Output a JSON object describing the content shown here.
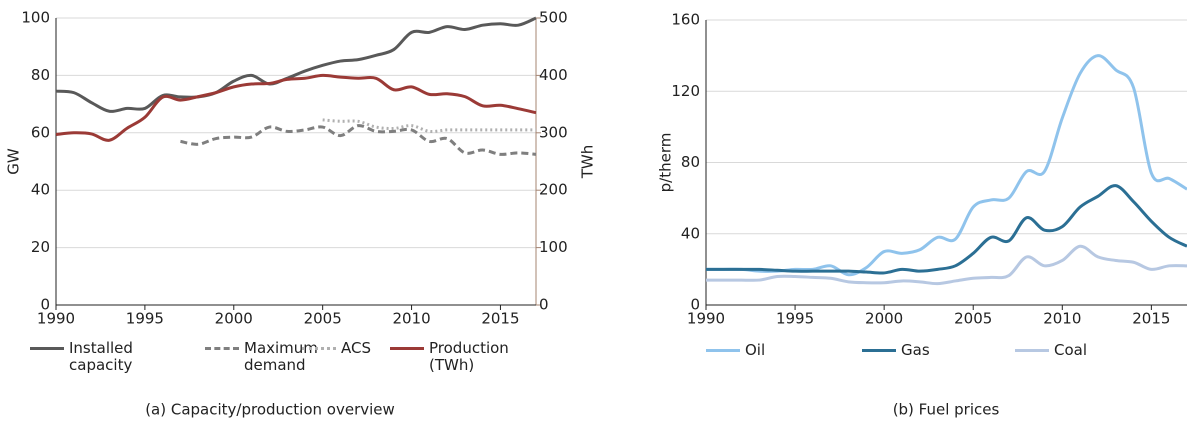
{
  "chart_data": [
    {
      "type": "line",
      "caption": "(a) Capacity/production overview",
      "ylabel": "GW",
      "y2label": "TWh",
      "y2_color": "#a48472",
      "x": [
        1990,
        1991,
        1992,
        1993,
        1994,
        1995,
        1996,
        1997,
        1998,
        1999,
        2000,
        2001,
        2002,
        2003,
        2004,
        2005,
        2006,
        2007,
        2008,
        2009,
        2010,
        2011,
        2012,
        2013,
        2014,
        2015,
        2016,
        2017
      ],
      "xlim": [
        1990,
        2017
      ],
      "xticks": [
        1990,
        1995,
        2000,
        2005,
        2010,
        2015
      ],
      "ylim": [
        0,
        100
      ],
      "yticks": [
        0,
        20,
        40,
        60,
        80,
        100
      ],
      "y2lim": [
        0,
        500
      ],
      "y2ticks": [
        0,
        100,
        200,
        300,
        400,
        500
      ],
      "grid": true,
      "series": [
        {
          "name": "Installed capacity",
          "color": "#595959",
          "linestyle": "solid",
          "values": [
            74.5,
            74,
            70.5,
            67.5,
            68.5,
            68.5,
            73,
            72.5,
            72.5,
            74,
            78,
            80,
            77,
            79,
            81.5,
            83.5,
            85,
            85.5,
            87,
            89,
            95,
            95,
            97,
            96,
            97.5,
            98,
            97.5,
            100
          ]
        },
        {
          "name": "Maximum demand",
          "color": "#7f7f7f",
          "linestyle": "dashed",
          "values": [
            null,
            null,
            null,
            null,
            null,
            null,
            null,
            57,
            56,
            58,
            58.5,
            58.5,
            62,
            60.5,
            61,
            62,
            59,
            62.5,
            60.5,
            60.5,
            61,
            57,
            58,
            53,
            54,
            52.5,
            53,
            52.5
          ]
        },
        {
          "name": "ACS",
          "color": "#b0b0b0",
          "linestyle": "dotted",
          "values": [
            null,
            null,
            null,
            null,
            null,
            null,
            null,
            null,
            null,
            null,
            null,
            null,
            null,
            null,
            null,
            64.5,
            64,
            64,
            62,
            61.5,
            62.5,
            60.5,
            61,
            61,
            61,
            61,
            61,
            61
          ]
        },
        {
          "name": "Production (TWh)",
          "color": "#9b3a36",
          "linestyle": "solid",
          "axis": "y2",
          "values": [
            297,
            300,
            298,
            287,
            308,
            327,
            362,
            357,
            363,
            370,
            380,
            385,
            386,
            393,
            395,
            400,
            397,
            395,
            395,
            375,
            380,
            367,
            368,
            363,
            347,
            348,
            342,
            335
          ]
        }
      ]
    },
    {
      "type": "line",
      "caption": "(b) Fuel prices",
      "ylabel": "p/therm",
      "x": [
        1990,
        1991,
        1992,
        1993,
        1994,
        1995,
        1996,
        1997,
        1998,
        1999,
        2000,
        2001,
        2002,
        2003,
        2004,
        2005,
        2006,
        2007,
        2008,
        2009,
        2010,
        2011,
        2012,
        2013,
        2014,
        2015,
        2016,
        2017
      ],
      "xlim": [
        1990,
        2017
      ],
      "xticks": [
        1990,
        1995,
        2000,
        2005,
        2010,
        2015
      ],
      "ylim": [
        0,
        160
      ],
      "yticks": [
        0,
        40,
        80,
        120,
        160
      ],
      "grid": true,
      "series": [
        {
          "name": "Oil",
          "color": "#8fc3ec",
          "linestyle": "solid",
          "values": [
            20,
            20,
            20,
            19,
            19,
            20,
            20,
            22,
            17,
            21,
            30,
            29,
            31,
            38,
            37,
            55,
            59,
            60,
            75,
            75,
            105,
            130,
            140,
            132,
            122,
            74,
            71,
            65
          ]
        },
        {
          "name": "Gas",
          "color": "#2b6f94",
          "linestyle": "solid",
          "values": [
            20,
            20,
            20,
            20,
            19.5,
            19,
            19,
            19,
            19,
            18.5,
            18,
            20,
            19,
            20,
            22,
            29,
            38,
            36,
            49,
            42,
            44,
            55,
            61,
            67,
            58,
            47,
            38,
            33
          ]
        },
        {
          "name": "Coal",
          "color": "#b7c8e2",
          "linestyle": "solid",
          "values": [
            14,
            14,
            14,
            14,
            16,
            16,
            15.5,
            15,
            13,
            12.5,
            12.5,
            13.5,
            13,
            12,
            13.5,
            15,
            15.5,
            16.5,
            27,
            22,
            25,
            33,
            27,
            25,
            24,
            20,
            22,
            22
          ]
        }
      ]
    }
  ]
}
